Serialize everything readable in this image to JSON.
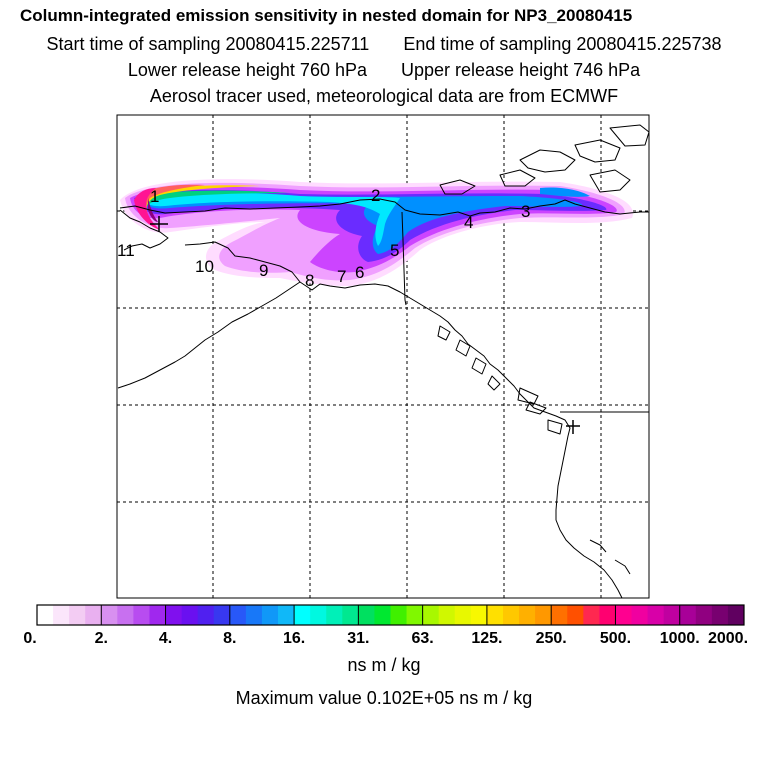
{
  "header": {
    "title": "Column-integrated emission sensitivity in nested domain for NP3_20080415",
    "start_label": "Start time of sampling 20080415.225711",
    "end_label": "End time of sampling 20080415.225738",
    "lower_label": "Lower release height  760 hPa",
    "upper_label": "Upper release height  746 hPa",
    "info_line": "Aerosol tracer used, meteorological data are from ECMWF"
  },
  "map": {
    "plume_colors": [
      "#ffdcff",
      "#f0a0ff",
      "#cc44ff",
      "#6a2cff",
      "#0090ff",
      "#00e8ff",
      "#00d080",
      "#c8ff00",
      "#ffd400",
      "#ff6060",
      "#ff1493",
      "#8b0080"
    ],
    "point_labels": [
      {
        "id": "1",
        "text": "1"
      },
      {
        "id": "2",
        "text": "2"
      },
      {
        "id": "3",
        "text": "3"
      },
      {
        "id": "4",
        "text": "4"
      },
      {
        "id": "5",
        "text": "5"
      },
      {
        "id": "6",
        "text": "6"
      },
      {
        "id": "7",
        "text": "7"
      },
      {
        "id": "8",
        "text": "8"
      },
      {
        "id": "9",
        "text": "9"
      },
      {
        "id": "10",
        "text": "10"
      },
      {
        "id": "11",
        "text": "11"
      }
    ]
  },
  "colorbar": {
    "tick_labels": [
      "0.",
      "2.",
      "4.",
      "8.",
      "16.",
      "31.",
      "63.",
      "125.",
      "250.",
      "500.",
      "1000.",
      "2000."
    ],
    "colors": [
      "#ffffff",
      "#fbe6fb",
      "#f3ccf3",
      "#e9b0f0",
      "#d890f0",
      "#c870f0",
      "#b84cf0",
      "#a028ee",
      "#8010ee",
      "#6a10f0",
      "#5020f0",
      "#3838f0",
      "#2858f8",
      "#1878f8",
      "#1098f8",
      "#10b8f8",
      "#00ffff",
      "#00f8e0",
      "#00f0b8",
      "#00e890",
      "#00e060",
      "#00e830",
      "#40f000",
      "#80f800",
      "#a8f800",
      "#d0f800",
      "#e8f800",
      "#f8f800",
      "#ffe000",
      "#ffc800",
      "#ffb000",
      "#ff9800",
      "#ff7000",
      "#ff5000",
      "#ff2850",
      "#ff0070",
      "#ff0090",
      "#f000a0",
      "#d800a8",
      "#c000a0",
      "#a80098",
      "#900080",
      "#780070",
      "#600060"
    ],
    "units": "ns m / kg",
    "max_value": "Maximum value  0.102E+05 ns m / kg"
  }
}
